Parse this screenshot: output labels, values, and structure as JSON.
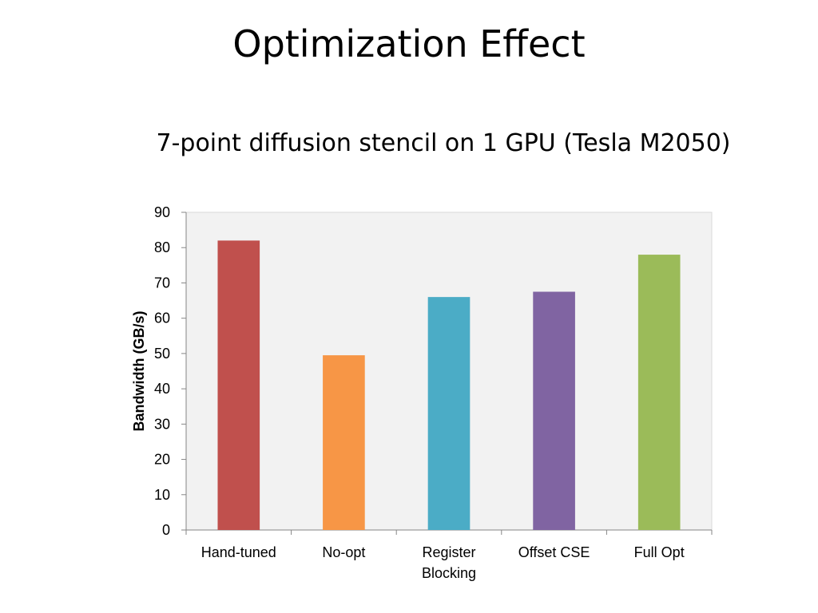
{
  "slide": {
    "title": "Optimization Effect"
  },
  "chart_data": {
    "type": "bar",
    "title": "7-point diffusion stencil on 1 GPU (Tesla M2050)",
    "xlabel": "",
    "ylabel": "Bandwidth (GB/s)",
    "categories": [
      "Hand-tuned",
      "No-opt",
      "Register Blocking",
      "Offset CSE",
      "Full Opt"
    ],
    "category_lines": [
      [
        "Hand-tuned"
      ],
      [
        "No-opt"
      ],
      [
        "Register",
        "Blocking"
      ],
      [
        "Offset CSE"
      ],
      [
        "Full Opt"
      ]
    ],
    "values": [
      82,
      49.5,
      66,
      67.5,
      78
    ],
    "colors": [
      "#C0504D",
      "#F79646",
      "#4BACC6",
      "#8064A2",
      "#9BBB59"
    ],
    "ylim": [
      0,
      90
    ],
    "yticks": [
      0,
      10,
      20,
      30,
      40,
      50,
      60,
      70,
      80,
      90
    ],
    "grid": false,
    "plot_background": "#F2F2F2",
    "legend": "none"
  }
}
